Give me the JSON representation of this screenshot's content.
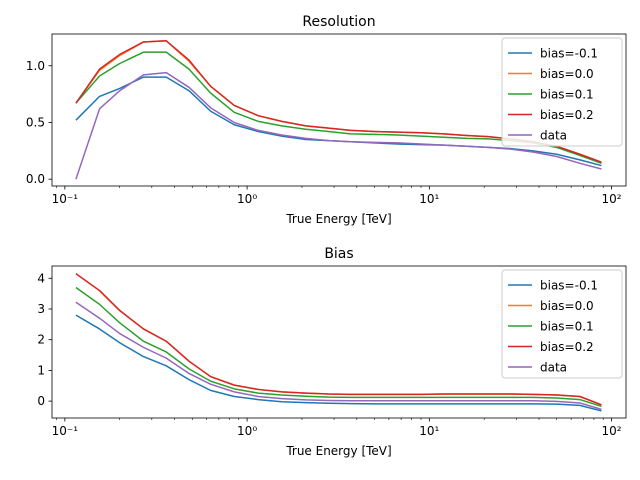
{
  "chart_data": [
    {
      "type": "line",
      "title": "Resolution",
      "xlabel": "True Energy [TeV]",
      "ylabel": "",
      "xscale": "log",
      "xlim": [
        0.085,
        120
      ],
      "ylim": [
        -0.06,
        1.28
      ],
      "x_ticks": [
        0.1,
        1,
        10,
        100
      ],
      "x_tick_labels": [
        "10⁻¹",
        "10⁰",
        "10¹",
        "10²"
      ],
      "y_ticks": [
        0.0,
        0.5,
        1.0
      ],
      "y_tick_labels": [
        "0.0",
        "0.5",
        "1.0"
      ],
      "legend": "top-right",
      "x": [
        0.115,
        0.155,
        0.2,
        0.27,
        0.36,
        0.48,
        0.63,
        0.85,
        1.15,
        1.55,
        2.1,
        2.8,
        3.7,
        5,
        6.7,
        9,
        12,
        16,
        21,
        28,
        37,
        50,
        67,
        88
      ],
      "series": [
        {
          "name": "bias=-0.1",
          "color": "#1f77b4",
          "values": [
            0.52,
            0.73,
            0.8,
            0.9,
            0.9,
            0.78,
            0.6,
            0.48,
            0.42,
            0.38,
            0.35,
            0.34,
            0.33,
            0.32,
            0.31,
            0.305,
            0.3,
            0.29,
            0.28,
            0.27,
            0.25,
            0.22,
            0.17,
            0.12
          ]
        },
        {
          "name": "bias=0.0",
          "color": "#ff7f0e",
          "values": [
            0.67,
            0.96,
            1.09,
            1.21,
            1.22,
            1.04,
            0.82,
            0.65,
            0.56,
            0.51,
            0.47,
            0.45,
            0.43,
            0.42,
            0.415,
            0.41,
            0.4,
            0.385,
            0.375,
            0.355,
            0.33,
            0.29,
            0.22,
            0.15
          ]
        },
        {
          "name": "bias=0.1",
          "color": "#2ca02c",
          "values": [
            0.67,
            0.91,
            1.02,
            1.12,
            1.12,
            0.97,
            0.76,
            0.59,
            0.51,
            0.47,
            0.44,
            0.42,
            0.4,
            0.395,
            0.39,
            0.38,
            0.37,
            0.36,
            0.355,
            0.34,
            0.32,
            0.28,
            0.21,
            0.14
          ]
        },
        {
          "name": "bias=0.2",
          "color": "#d62728",
          "values": [
            0.67,
            0.97,
            1.1,
            1.21,
            1.22,
            1.05,
            0.82,
            0.65,
            0.56,
            0.51,
            0.47,
            0.45,
            0.43,
            0.42,
            0.415,
            0.41,
            0.4,
            0.385,
            0.375,
            0.355,
            0.33,
            0.29,
            0.22,
            0.15
          ]
        },
        {
          "name": "data",
          "color": "#9467bd",
          "values": [
            0.0,
            0.62,
            0.78,
            0.92,
            0.94,
            0.81,
            0.63,
            0.5,
            0.43,
            0.39,
            0.36,
            0.34,
            0.33,
            0.325,
            0.32,
            0.31,
            0.3,
            0.29,
            0.28,
            0.265,
            0.24,
            0.2,
            0.14,
            0.09
          ]
        }
      ]
    },
    {
      "type": "line",
      "title": "Bias",
      "xlabel": "True Energy [TeV]",
      "ylabel": "",
      "xscale": "log",
      "xlim": [
        0.085,
        120
      ],
      "ylim": [
        -0.55,
        4.4
      ],
      "x_ticks": [
        0.1,
        1,
        10,
        100
      ],
      "x_tick_labels": [
        "10⁻¹",
        "10⁰",
        "10¹",
        "10²"
      ],
      "y_ticks": [
        0,
        1,
        2,
        3,
        4
      ],
      "y_tick_labels": [
        "0",
        "1",
        "2",
        "3",
        "4"
      ],
      "legend": "top-right",
      "x": [
        0.115,
        0.155,
        0.2,
        0.27,
        0.36,
        0.48,
        0.63,
        0.85,
        1.15,
        1.55,
        2.1,
        2.8,
        3.7,
        5,
        6.7,
        9,
        12,
        16,
        21,
        28,
        37,
        50,
        67,
        88
      ],
      "series": [
        {
          "name": "bias=-0.1",
          "color": "#1f77b4",
          "values": [
            2.8,
            2.35,
            1.9,
            1.45,
            1.15,
            0.7,
            0.35,
            0.15,
            0.05,
            -0.02,
            -0.05,
            -0.07,
            -0.08,
            -0.09,
            -0.09,
            -0.09,
            -0.09,
            -0.09,
            -0.09,
            -0.09,
            -0.09,
            -0.1,
            -0.14,
            -0.32
          ]
        },
        {
          "name": "bias=0.0",
          "color": "#ff7f0e",
          "values": [
            4.15,
            3.6,
            2.95,
            2.35,
            1.95,
            1.3,
            0.8,
            0.52,
            0.38,
            0.3,
            0.26,
            0.23,
            0.22,
            0.22,
            0.22,
            0.22,
            0.23,
            0.23,
            0.23,
            0.23,
            0.22,
            0.2,
            0.15,
            -0.12
          ]
        },
        {
          "name": "bias=0.1",
          "color": "#2ca02c",
          "values": [
            3.7,
            3.15,
            2.55,
            1.95,
            1.6,
            1.05,
            0.65,
            0.4,
            0.26,
            0.2,
            0.16,
            0.13,
            0.12,
            0.12,
            0.12,
            0.12,
            0.12,
            0.12,
            0.12,
            0.12,
            0.12,
            0.1,
            0.05,
            -0.17
          ]
        },
        {
          "name": "bias=0.2",
          "color": "#d62728",
          "values": [
            4.15,
            3.6,
            2.95,
            2.35,
            1.95,
            1.3,
            0.8,
            0.52,
            0.38,
            0.3,
            0.26,
            0.23,
            0.22,
            0.22,
            0.22,
            0.22,
            0.23,
            0.23,
            0.23,
            0.23,
            0.22,
            0.2,
            0.15,
            -0.12
          ]
        },
        {
          "name": "data",
          "color": "#9467bd",
          "values": [
            3.22,
            2.7,
            2.2,
            1.75,
            1.4,
            0.9,
            0.55,
            0.3,
            0.15,
            0.08,
            0.04,
            0.02,
            0.01,
            0.01,
            0.01,
            0.01,
            0.01,
            0.01,
            0.01,
            0.01,
            0.01,
            -0.01,
            -0.06,
            -0.27
          ]
        }
      ]
    }
  ]
}
